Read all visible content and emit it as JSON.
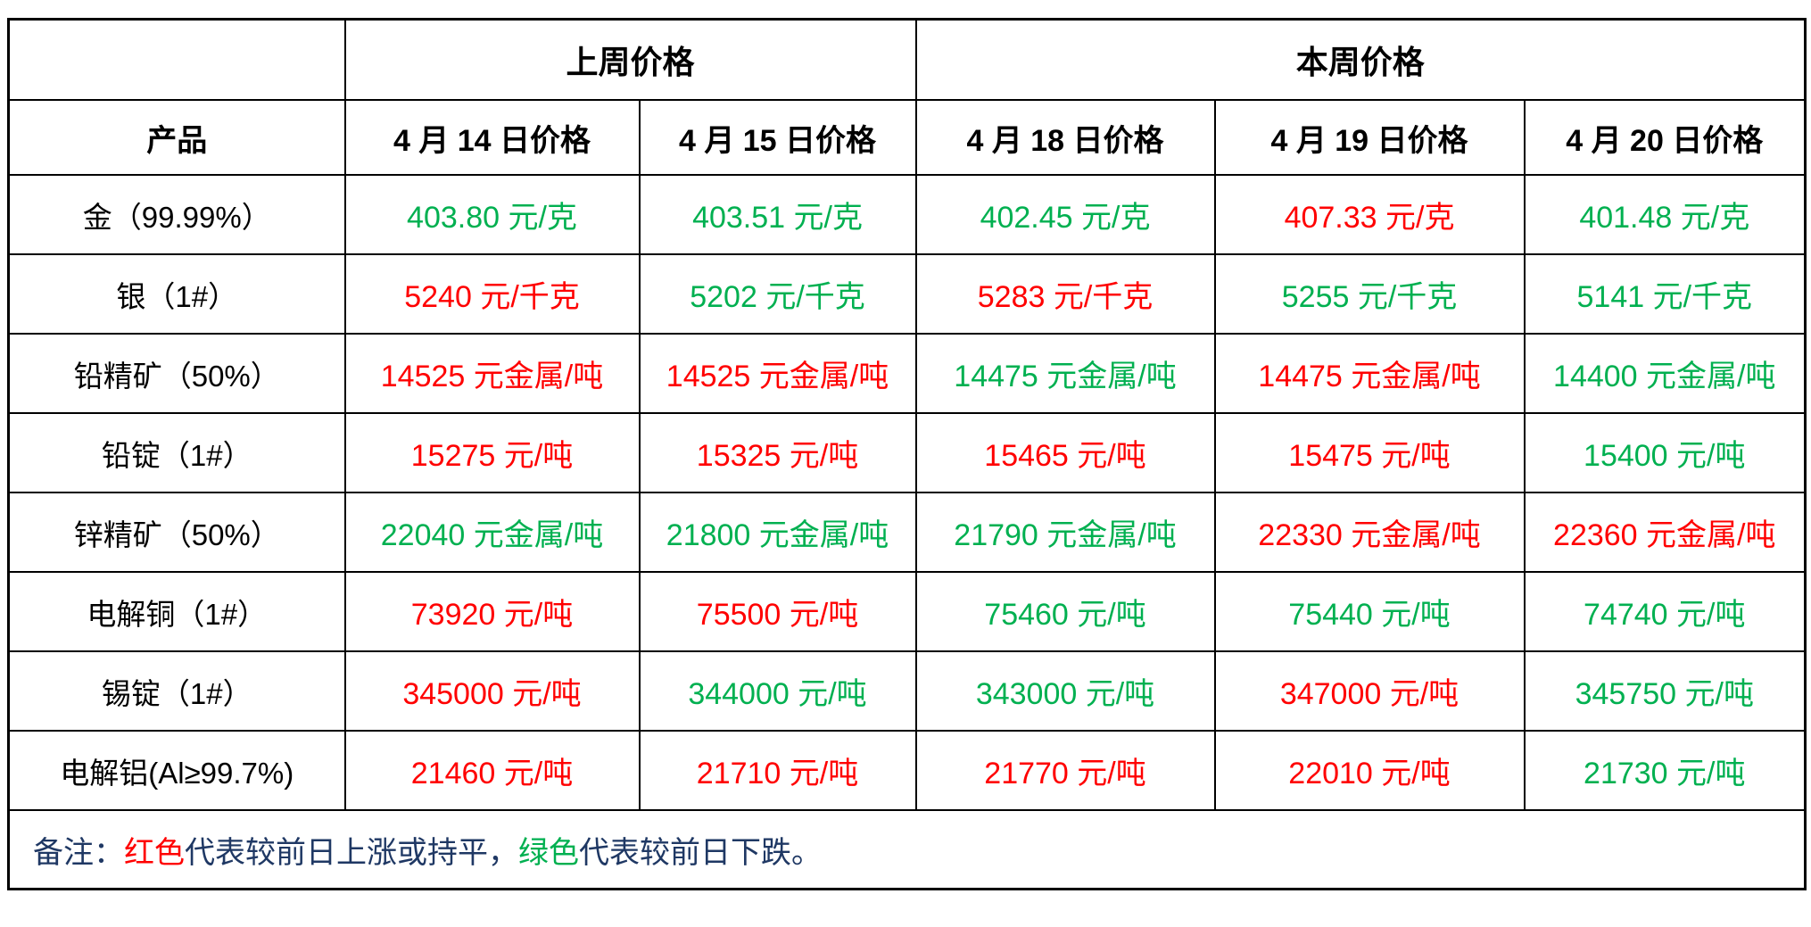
{
  "colors": {
    "red": "#ff0000",
    "green": "#00b050",
    "navy": "#1f3864",
    "border": "#000000",
    "background": "#ffffff"
  },
  "table": {
    "group_headers": [
      {
        "label": "上周价格",
        "colspan": 2
      },
      {
        "label": "本周价格",
        "colspan": 3
      }
    ],
    "product_header": "产品",
    "date_headers": [
      "4 月 14 日价格",
      "4 月 15 日价格",
      "4 月 18 日价格",
      "4 月 19 日价格",
      "4 月 20 日价格"
    ],
    "rows": [
      {
        "product": "金（99.99%）",
        "prices": [
          {
            "text": "403.80 元/克",
            "color": "green"
          },
          {
            "text": "403.51 元/克",
            "color": "green"
          },
          {
            "text": "402.45 元/克",
            "color": "green"
          },
          {
            "text": "407.33 元/克",
            "color": "red"
          },
          {
            "text": "401.48 元/克",
            "color": "green"
          }
        ]
      },
      {
        "product": "银（1#）",
        "prices": [
          {
            "text": "5240 元/千克",
            "color": "red"
          },
          {
            "text": "5202 元/千克",
            "color": "green"
          },
          {
            "text": "5283 元/千克",
            "color": "red"
          },
          {
            "text": "5255 元/千克",
            "color": "green"
          },
          {
            "text": "5141 元/千克",
            "color": "green"
          }
        ]
      },
      {
        "product": "铅精矿（50%）",
        "prices": [
          {
            "text": "14525 元金属/吨",
            "color": "red"
          },
          {
            "text": "14525 元金属/吨",
            "color": "red"
          },
          {
            "text": "14475 元金属/吨",
            "color": "green"
          },
          {
            "text": "14475 元金属/吨",
            "color": "red"
          },
          {
            "text": "14400 元金属/吨",
            "color": "green"
          }
        ]
      },
      {
        "product": "铅锭（1#）",
        "prices": [
          {
            "text": "15275 元/吨",
            "color": "red"
          },
          {
            "text": "15325 元/吨",
            "color": "red"
          },
          {
            "text": "15465 元/吨",
            "color": "red"
          },
          {
            "text": "15475 元/吨",
            "color": "red"
          },
          {
            "text": "15400 元/吨",
            "color": "green"
          }
        ]
      },
      {
        "product": "锌精矿（50%）",
        "prices": [
          {
            "text": "22040 元金属/吨",
            "color": "green"
          },
          {
            "text": "21800 元金属/吨",
            "color": "green"
          },
          {
            "text": "21790 元金属/吨",
            "color": "green"
          },
          {
            "text": "22330 元金属/吨",
            "color": "red"
          },
          {
            "text": "22360 元金属/吨",
            "color": "red"
          }
        ]
      },
      {
        "product": "电解铜（1#）",
        "prices": [
          {
            "text": "73920 元/吨",
            "color": "red"
          },
          {
            "text": "75500 元/吨",
            "color": "red"
          },
          {
            "text": "75460 元/吨",
            "color": "green"
          },
          {
            "text": "75440 元/吨",
            "color": "green"
          },
          {
            "text": "74740 元/吨",
            "color": "green"
          }
        ]
      },
      {
        "product": "锡锭（1#）",
        "prices": [
          {
            "text": "345000 元/吨",
            "color": "red"
          },
          {
            "text": "344000 元/吨",
            "color": "green"
          },
          {
            "text": "343000 元/吨",
            "color": "green"
          },
          {
            "text": "347000 元/吨",
            "color": "red"
          },
          {
            "text": "345750 元/吨",
            "color": "green"
          }
        ]
      },
      {
        "product": "电解铝(Al≥99.7%)",
        "prices": [
          {
            "text": "21460 元/吨",
            "color": "red"
          },
          {
            "text": "21710 元/吨",
            "color": "red"
          },
          {
            "text": "21770 元/吨",
            "color": "red"
          },
          {
            "text": "22010 元/吨",
            "color": "red"
          },
          {
            "text": "21730 元/吨",
            "color": "green"
          }
        ]
      }
    ]
  },
  "note": {
    "segments": [
      {
        "text": "备注：",
        "color": "navy"
      },
      {
        "text": "红色",
        "color": "red"
      },
      {
        "text": "代表较前日上涨或持平，",
        "color": "navy"
      },
      {
        "text": "绿色",
        "color": "green"
      },
      {
        "text": "代表较前日下跌。",
        "color": "navy"
      }
    ]
  }
}
